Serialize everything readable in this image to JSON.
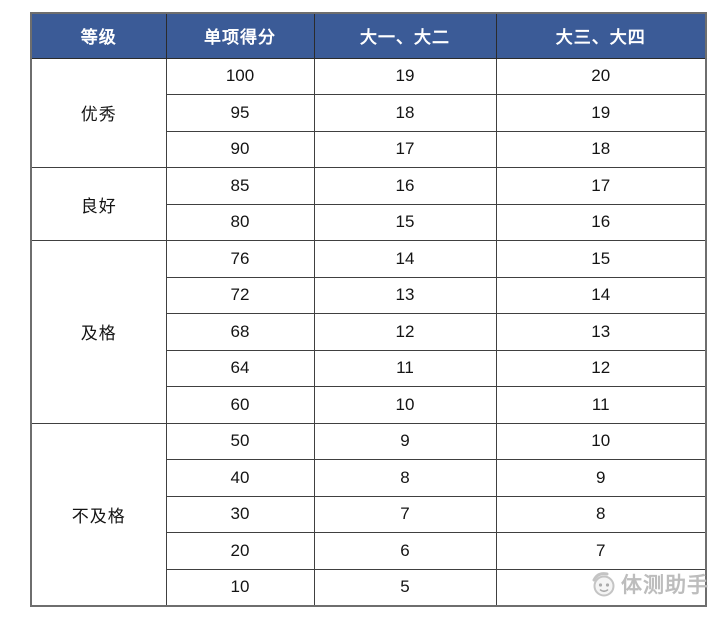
{
  "table": {
    "columns": [
      "等级",
      "单项得分",
      "大一、大二",
      "大三、大四"
    ],
    "groups": [
      {
        "grade": "优秀",
        "rows": [
          [
            100,
            19,
            20
          ],
          [
            95,
            18,
            19
          ],
          [
            90,
            17,
            18
          ]
        ]
      },
      {
        "grade": "良好",
        "rows": [
          [
            85,
            16,
            17
          ],
          [
            80,
            15,
            16
          ]
        ]
      },
      {
        "grade": "及格",
        "rows": [
          [
            76,
            14,
            15
          ],
          [
            72,
            13,
            14
          ],
          [
            68,
            12,
            13
          ],
          [
            64,
            11,
            12
          ],
          [
            60,
            10,
            11
          ]
        ]
      },
      {
        "grade": "不及格",
        "rows": [
          [
            50,
            9,
            10
          ],
          [
            40,
            8,
            9
          ],
          [
            30,
            7,
            8
          ],
          [
            20,
            6,
            7
          ],
          [
            10,
            5,
            6
          ]
        ]
      }
    ]
  },
  "watermark": {
    "label": "体测助手"
  },
  "colors": {
    "header_bg": "#3B5B97",
    "header_text": "#FFFFFF",
    "grid_line": "#404040",
    "watermark_gray": "#BDBDBD"
  },
  "chart_data": {
    "type": "table",
    "title": "",
    "columns": [
      "等级",
      "单项得分",
      "大一、大二",
      "大三、大四"
    ],
    "rows": [
      [
        "优秀",
        100,
        19,
        20
      ],
      [
        "优秀",
        95,
        18,
        19
      ],
      [
        "优秀",
        90,
        17,
        18
      ],
      [
        "良好",
        85,
        16,
        17
      ],
      [
        "良好",
        80,
        15,
        16
      ],
      [
        "及格",
        76,
        14,
        15
      ],
      [
        "及格",
        72,
        13,
        14
      ],
      [
        "及格",
        68,
        12,
        13
      ],
      [
        "及格",
        64,
        11,
        12
      ],
      [
        "及格",
        60,
        10,
        11
      ],
      [
        "不及格",
        50,
        9,
        10
      ],
      [
        "不及格",
        40,
        8,
        9
      ],
      [
        "不及格",
        30,
        7,
        8
      ],
      [
        "不及格",
        20,
        6,
        7
      ],
      [
        "不及格",
        10,
        5,
        6
      ]
    ],
    "layout_hints": {
      "merged_first_column": true,
      "header_style": "blue-banner",
      "grid": "on"
    }
  }
}
